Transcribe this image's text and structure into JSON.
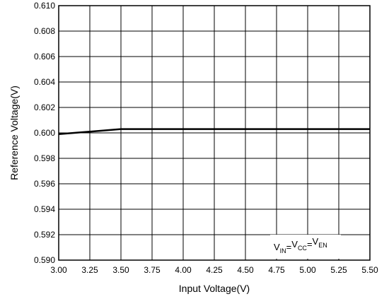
{
  "chart_data": {
    "type": "line",
    "x_label": "Input Voltage(V)",
    "y_label": "Reference Voltage(V)",
    "x": [
      3.0,
      3.5,
      5.5
    ],
    "series": [
      {
        "name": "Reference Voltage",
        "color": "#000000",
        "values": [
          0.5999,
          0.6003,
          0.6003
        ]
      }
    ],
    "xlim": [
      3.0,
      5.5
    ],
    "xticks": [
      {
        "value": 3.0,
        "label": "3.00"
      },
      3.25,
      {
        "value": 3.5,
        "label": "3.50"
      },
      3.75,
      {
        "value": 4.0,
        "label": "4.00"
      },
      4.25,
      {
        "value": 4.5,
        "label": "4.50"
      },
      4.75,
      {
        "value": 5.0,
        "label": "5.00"
      },
      5.25,
      {
        "value": 5.5,
        "label": "5.50"
      }
    ],
    "ylim": [
      0.59,
      0.61
    ],
    "yticks": [
      {
        "value": 0.59,
        "label": "0.590"
      },
      0.592,
      0.594,
      0.596,
      0.598,
      {
        "value": 0.6,
        "label": "0.600"
      },
      0.602,
      0.604,
      0.606,
      0.608,
      {
        "value": 0.61,
        "label": "0.610"
      }
    ],
    "grid": true,
    "annotation": {
      "base": [
        "V",
        "V",
        "V"
      ],
      "subscripts": [
        "IN",
        "CC",
        "EN"
      ],
      "separator": "="
    }
  }
}
